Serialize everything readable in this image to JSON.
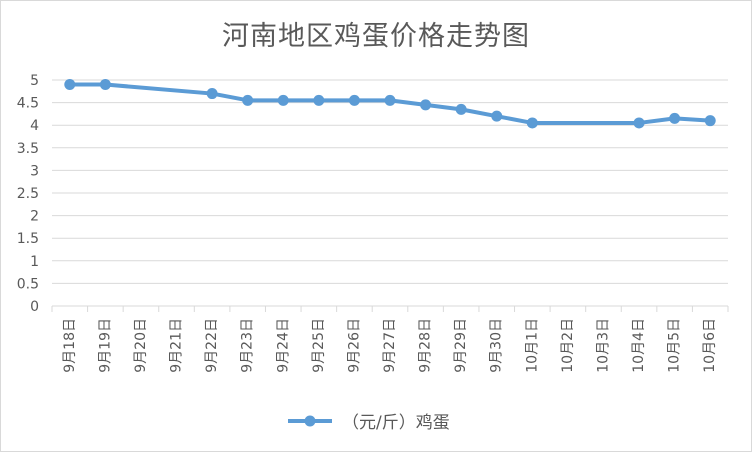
{
  "chart_data": {
    "type": "line",
    "title": "河南地区鸡蛋价格走势图",
    "categories": [
      "9月18日",
      "9月19日",
      "9月20日",
      "9月21日",
      "9月22日",
      "9月23日",
      "9月24日",
      "9月25日",
      "9月26日",
      "9月27日",
      "9月28日",
      "9月29日",
      "9月30日",
      "10月1日",
      "10月2日",
      "10月3日",
      "10月4日",
      "10月5日",
      "10月6日"
    ],
    "series": [
      {
        "name": "（元/斤）鸡蛋",
        "color": "#5b9bd5",
        "values": [
          4.9,
          4.9,
          null,
          null,
          4.7,
          4.55,
          4.55,
          4.55,
          4.55,
          4.55,
          4.45,
          4.35,
          4.2,
          4.05,
          null,
          null,
          4.05,
          4.15,
          4.1
        ]
      }
    ],
    "ylim": [
      0,
      5
    ],
    "yticks": [
      "0",
      "0.5",
      "1",
      "1.5",
      "2",
      "2.5",
      "3",
      "3.5",
      "4",
      "4.5",
      "5"
    ],
    "grid": true,
    "legend_position": "bottom"
  }
}
